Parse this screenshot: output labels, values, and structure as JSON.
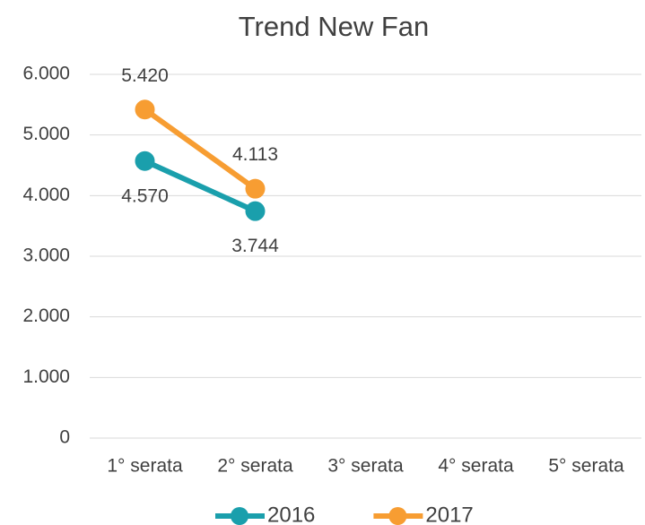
{
  "chart_data": {
    "type": "line",
    "title": "Trend New Fan",
    "categories": [
      "1° serata",
      "2° serata",
      "3° serata",
      "4° serata",
      "5° serata"
    ],
    "series": [
      {
        "name": "2016",
        "color": "#1a9fac",
        "values": [
          4570,
          3744,
          null,
          null,
          null
        ],
        "value_labels": [
          "4.570",
          "3.744",
          null,
          null,
          null
        ]
      },
      {
        "name": "2017",
        "color": "#f79d32",
        "values": [
          5420,
          4113,
          null,
          null,
          null
        ],
        "value_labels": [
          "5.420",
          "4.113",
          null,
          null,
          null
        ]
      }
    ],
    "ylim": [
      0,
      6000
    ],
    "yticks": [
      0,
      {
        "value": 1000,
        "label": "1.000"
      },
      {
        "value": 2000,
        "label": "2.000"
      },
      {
        "value": 3000,
        "label": "3.000"
      },
      {
        "value": 4000,
        "label": "4.000"
      },
      {
        "value": 5000,
        "label": "5.000"
      },
      {
        "value": 6000,
        "label": "6.000"
      }
    ],
    "grid": true,
    "legend": "bottom"
  }
}
